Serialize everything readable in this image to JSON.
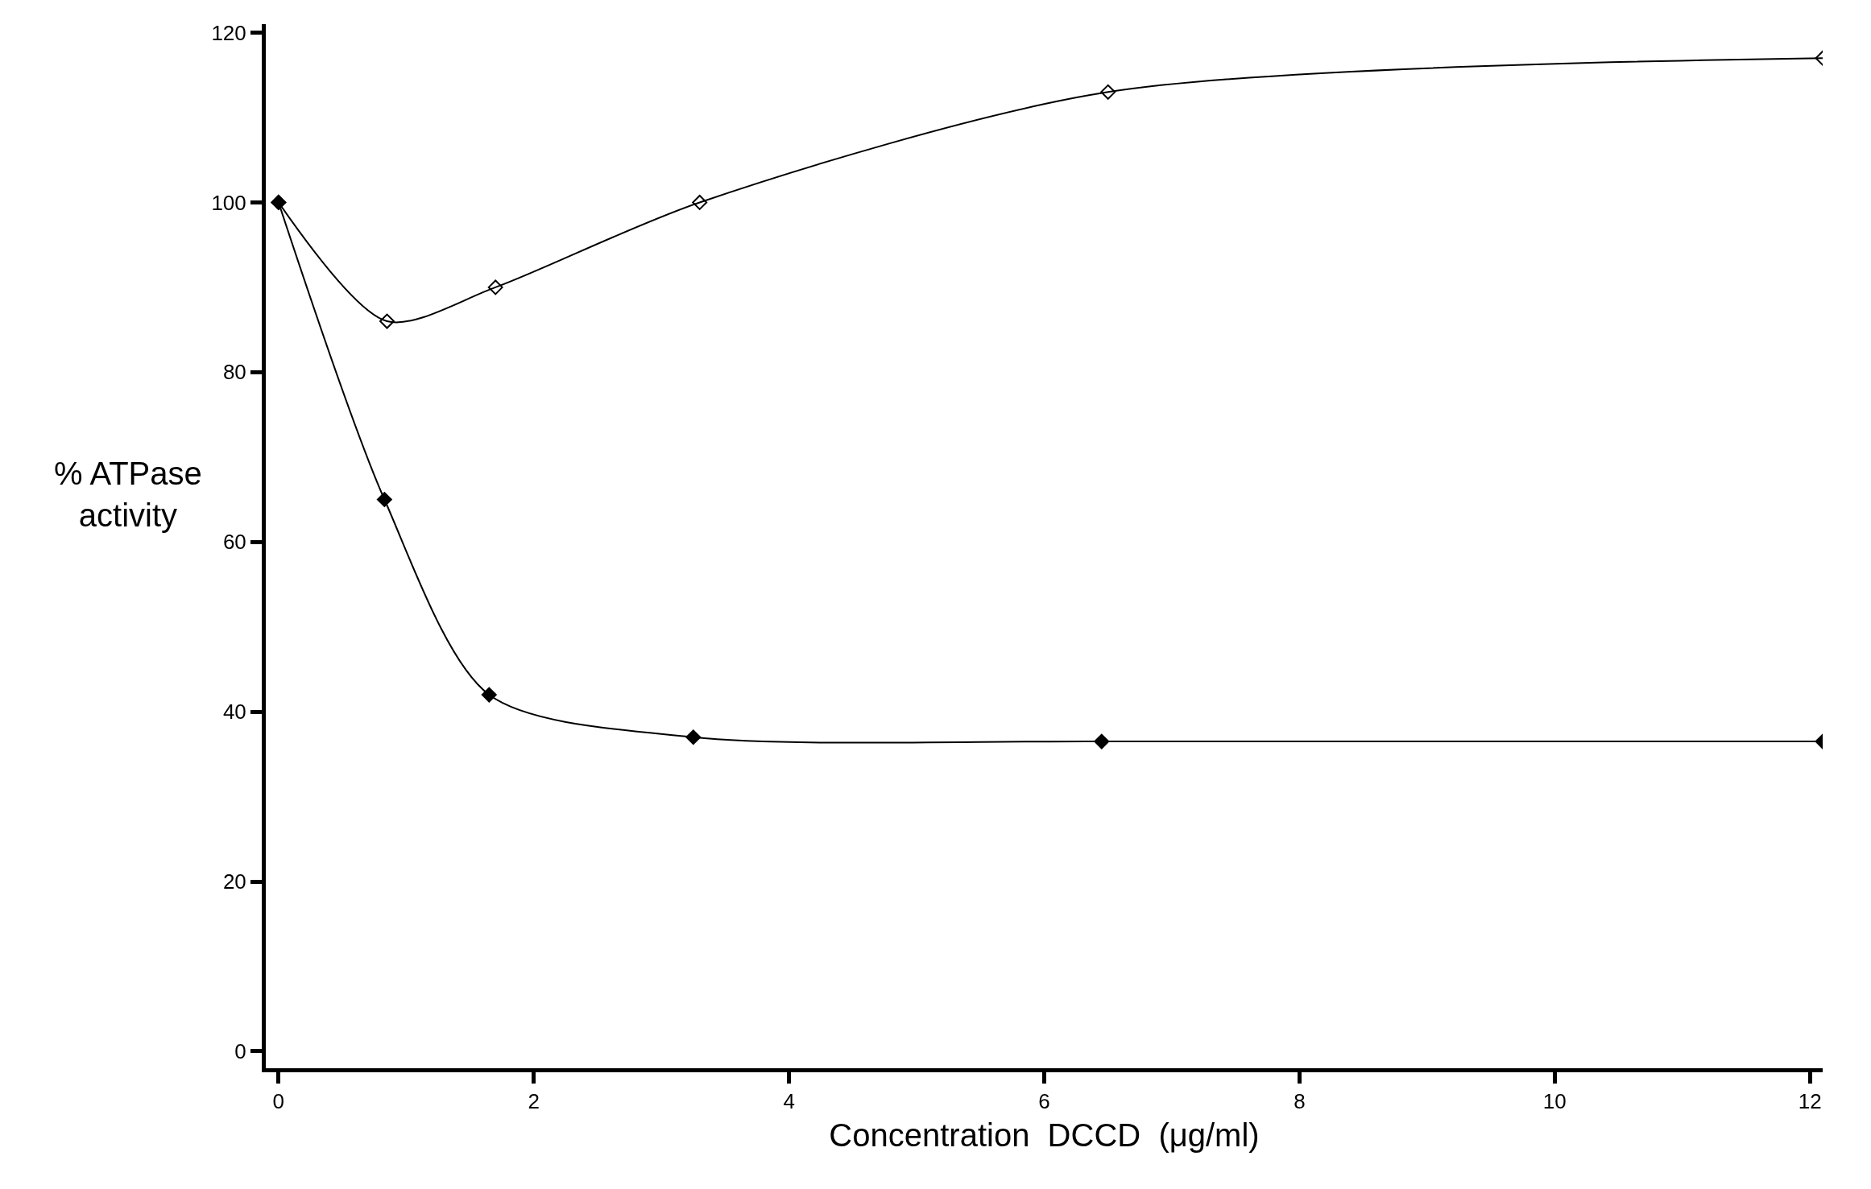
{
  "chart_data": {
    "type": "line",
    "xlabel": "Concentration  DCCD  (μg/ml)",
    "ylabel": "% ATPase\nactivity",
    "xlim": [
      -0.1,
      12.1
    ],
    "ylim": [
      -2,
      121
    ],
    "xticks": [
      0,
      2,
      4,
      6,
      8,
      10,
      12
    ],
    "yticks": [
      0,
      20,
      40,
      60,
      80,
      100,
      120
    ],
    "line_style": "solid",
    "series": [
      {
        "color": "#000000",
        "marker": "diamond-open",
        "x": [
          0,
          0.85,
          1.7,
          3.3,
          6.5,
          12.1
        ],
        "values": [
          100,
          86,
          90,
          100,
          113,
          117
        ]
      },
      {
        "color": "#000000",
        "marker": "diamond",
        "x": [
          0,
          0.83,
          1.65,
          3.25,
          6.45,
          12.1
        ],
        "values": [
          100,
          65,
          42,
          37,
          36.5,
          36.5
        ]
      }
    ]
  }
}
